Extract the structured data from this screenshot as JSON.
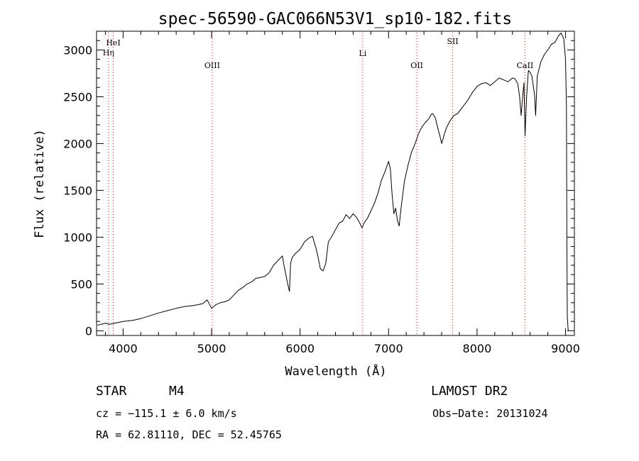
{
  "chart_data": {
    "type": "line",
    "title": "spec-56590-GAC066N53V1_sp10-182.fits",
    "xlabel": "Wavelength (Å)",
    "ylabel": "Flux (relative)",
    "xlim": [
      3700,
      9100
    ],
    "ylim": [
      -50,
      3200
    ],
    "xticks": [
      4000,
      5000,
      6000,
      7000,
      8000,
      9000
    ],
    "yticks": [
      0,
      500,
      1000,
      1500,
      2000,
      2500,
      3000
    ],
    "grid": false,
    "lines": [
      {
        "label": "HeI",
        "x": 3889
      },
      {
        "label": "Hη",
        "x": 3835
      },
      {
        "label": "OIII",
        "x": 5007
      },
      {
        "label": "Li",
        "x": 6708
      },
      {
        "label": "OII",
        "x": 7320
      },
      {
        "label": "SII",
        "x": 7725
      },
      {
        "label": "CaII",
        "x": 8542
      }
    ],
    "series": [
      {
        "x": [
          3710,
          3750,
          3800,
          3850,
          3900,
          3950,
          4000,
          4050,
          4100,
          4150,
          4200,
          4300,
          4400,
          4500,
          4600,
          4700,
          4800,
          4900,
          4950,
          5000,
          5050,
          5100,
          5150,
          5200,
          5250,
          5300,
          5350,
          5400,
          5450,
          5500,
          5550,
          5600,
          5650,
          5700,
          5750,
          5800,
          5820,
          5860,
          5880,
          5893,
          5910,
          5940,
          6000,
          6050,
          6100,
          6140,
          6180,
          6200,
          6230,
          6260,
          6290,
          6320,
          6360,
          6400,
          6440,
          6480,
          6520,
          6560,
          6600,
          6640,
          6680,
          6700,
          6730,
          6760,
          6800,
          6840,
          6880,
          6920,
          6960,
          7000,
          7020,
          7040,
          7060,
          7080,
          7100,
          7120,
          7140,
          7180,
          7220,
          7260,
          7300,
          7340,
          7380,
          7420,
          7460,
          7480,
          7500,
          7530,
          7560,
          7580,
          7600,
          7630,
          7660,
          7700,
          7740,
          7780,
          7820,
          7860,
          7900,
          7950,
          8000,
          8050,
          8100,
          8150,
          8200,
          8250,
          8300,
          8350,
          8400,
          8430,
          8460,
          8480,
          8498,
          8510,
          8530,
          8542,
          8560,
          8580,
          8600,
          8620,
          8650,
          8662,
          8680,
          8720,
          8760,
          8800,
          8840,
          8880,
          8920,
          8950,
          8980,
          9000,
          9010,
          9015,
          9020,
          9030
        ],
        "y": [
          60,
          70,
          80,
          70,
          80,
          90,
          100,
          105,
          110,
          120,
          130,
          160,
          190,
          215,
          240,
          260,
          270,
          290,
          330,
          240,
          280,
          300,
          310,
          330,
          380,
          430,
          460,
          500,
          520,
          560,
          570,
          580,
          620,
          700,
          750,
          800,
          690,
          500,
          420,
          720,
          780,
          820,
          870,
          950,
          990,
          1010,
          880,
          800,
          660,
          640,
          720,
          950,
          1010,
          1080,
          1150,
          1170,
          1240,
          1200,
          1250,
          1210,
          1140,
          1100,
          1160,
          1200,
          1280,
          1360,
          1470,
          1610,
          1700,
          1810,
          1730,
          1450,
          1250,
          1310,
          1180,
          1120,
          1300,
          1600,
          1770,
          1910,
          2000,
          2110,
          2180,
          2230,
          2270,
          2310,
          2320,
          2270,
          2150,
          2080,
          2000,
          2100,
          2180,
          2250,
          2300,
          2320,
          2370,
          2420,
          2470,
          2550,
          2610,
          2640,
          2650,
          2620,
          2660,
          2700,
          2680,
          2660,
          2700,
          2690,
          2640,
          2510,
          2300,
          2450,
          2650,
          2080,
          2500,
          2780,
          2760,
          2720,
          2520,
          2300,
          2720,
          2870,
          2950,
          3000,
          3060,
          3080,
          3150,
          3180,
          3120,
          2900,
          2400,
          1000,
          150,
          0
        ]
      }
    ]
  },
  "info": {
    "class": "STAR",
    "subclass": "M4",
    "survey": "LAMOST DR2",
    "cz": "cz = −115.1 ± 6.0 km/s",
    "obs_date": "Obs−Date: 20131024",
    "coords": "RA =  62.81110, DEC =  52.45765"
  }
}
